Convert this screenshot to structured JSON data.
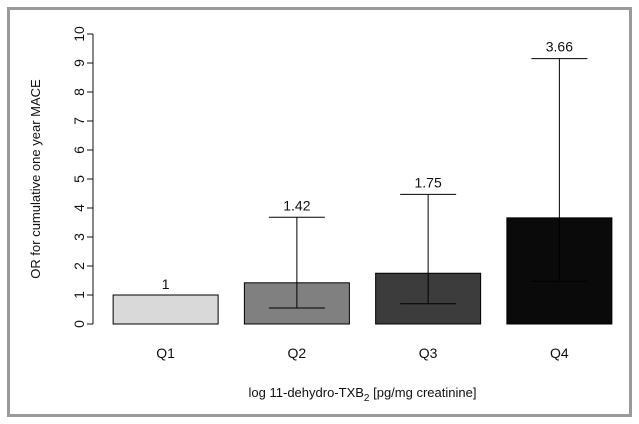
{
  "chart_data": {
    "type": "bar",
    "title": "",
    "ylabel": "OR for cumulative one year MACE",
    "xlabel": {
      "prefix": "log 11-dehydro-TXB",
      "subscript": "2",
      "suffix": " [pg/mg creatinine]"
    },
    "ylim": [
      0,
      10
    ],
    "yticks": [
      "0",
      "1",
      "2",
      "3",
      "4",
      "5",
      "6",
      "7",
      "8",
      "9",
      "10"
    ],
    "categories": [
      "Q1",
      "Q2",
      "Q3",
      "Q4"
    ],
    "values": [
      1,
      1.42,
      1.75,
      3.66
    ],
    "data_labels": [
      "1",
      "1.42",
      "1.75",
      "3.66"
    ],
    "ci_lower": [
      null,
      0.55,
      0.7,
      1.47
    ],
    "ci_upper": [
      null,
      3.68,
      4.47,
      9.15
    ],
    "bar_colors": [
      "#d9d9d9",
      "#808080",
      "#3c3c3c",
      "#0a0a0a"
    ],
    "grid": false,
    "legend": "none"
  }
}
